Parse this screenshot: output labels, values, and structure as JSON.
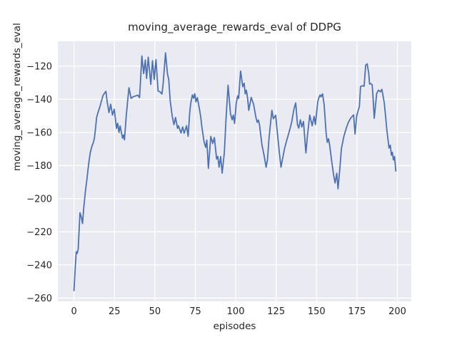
{
  "chart_data": {
    "type": "line",
    "title": "moving_average_rewards_eval of DDPG",
    "xlabel": "episodes",
    "ylabel": "moving_average_rewards_eval",
    "xlim": [
      -10,
      208.6
    ],
    "ylim": [
      -262,
      -105
    ],
    "grid": true,
    "plot_bg": "#eaeaf2",
    "grid_color": "#ffffff",
    "line_color": "#4c72b0",
    "x_tick_values": [
      0,
      25,
      50,
      75,
      100,
      125,
      150,
      175,
      200
    ],
    "x_tick_labels": [
      "0",
      "25",
      "50",
      "75",
      "100",
      "125",
      "150",
      "175",
      "200"
    ],
    "y_tick_values": [
      -120,
      -140,
      -160,
      -180,
      -200,
      -220,
      -240,
      -260
    ],
    "y_tick_labels": [
      "−120",
      "−140",
      "−160",
      "−180",
      "−200",
      "−220",
      "−240",
      "−260"
    ],
    "series": [
      [
        0,
        -255.5
      ],
      [
        0.7,
        -243
      ],
      [
        1.4,
        -232
      ],
      [
        2,
        -233
      ],
      [
        2.6,
        -230.5
      ],
      [
        3.7,
        -208.5
      ],
      [
        4.5,
        -211
      ],
      [
        5.3,
        -215
      ],
      [
        6,
        -206
      ],
      [
        7,
        -196
      ],
      [
        8,
        -188
      ],
      [
        9,
        -179.5
      ],
      [
        10,
        -172.5
      ],
      [
        11,
        -168.5
      ],
      [
        12,
        -166
      ],
      [
        12.6,
        -163.5
      ],
      [
        13.3,
        -157.5
      ],
      [
        14,
        -151
      ],
      [
        15,
        -147.5
      ],
      [
        16,
        -144.5
      ],
      [
        17,
        -141
      ],
      [
        18,
        -137.5
      ],
      [
        19.7,
        -135.2
      ],
      [
        20.5,
        -141.5
      ],
      [
        21.6,
        -148
      ],
      [
        22.7,
        -143
      ],
      [
        23.8,
        -149.5
      ],
      [
        24.9,
        -146
      ],
      [
        26.3,
        -157.5
      ],
      [
        27,
        -154.5
      ],
      [
        27.8,
        -160
      ],
      [
        28.5,
        -156
      ],
      [
        30,
        -163.5
      ],
      [
        30.6,
        -161.5
      ],
      [
        31.2,
        -164.5
      ],
      [
        32.2,
        -151
      ],
      [
        33,
        -142.5
      ],
      [
        34,
        -133
      ],
      [
        35.3,
        -139.5
      ],
      [
        36.5,
        -138.5
      ],
      [
        38,
        -138
      ],
      [
        39.5,
        -137.5
      ],
      [
        40.5,
        -139
      ],
      [
        41,
        -131
      ],
      [
        42,
        -113.8
      ],
      [
        43.1,
        -124.5
      ],
      [
        44.1,
        -116.3
      ],
      [
        44.9,
        -127.4
      ],
      [
        45.9,
        -114.6
      ],
      [
        47.5,
        -131
      ],
      [
        48.5,
        -116.7
      ],
      [
        49.6,
        -128
      ],
      [
        50.7,
        -116
      ],
      [
        52,
        -135
      ],
      [
        53.2,
        -135.5
      ],
      [
        54.4,
        -136.8
      ],
      [
        55.2,
        -130
      ],
      [
        56.6,
        -112
      ],
      [
        57.8,
        -124.5
      ],
      [
        58.6,
        -128
      ],
      [
        59.5,
        -141
      ],
      [
        60.7,
        -150
      ],
      [
        61.8,
        -155.3
      ],
      [
        62.8,
        -151
      ],
      [
        64,
        -157.5
      ],
      [
        64.6,
        -156
      ],
      [
        66.2,
        -160.3
      ],
      [
        67.2,
        -156.7
      ],
      [
        68.1,
        -160.5
      ],
      [
        69.6,
        -156
      ],
      [
        70.6,
        -162.4
      ],
      [
        71.5,
        -149
      ],
      [
        72.1,
        -143
      ],
      [
        73.2,
        -137.3
      ],
      [
        74,
        -139.4
      ],
      [
        74.7,
        -136.6
      ],
      [
        75.4,
        -141.6
      ],
      [
        76.3,
        -139
      ],
      [
        77.7,
        -146.6
      ],
      [
        78.4,
        -151
      ],
      [
        79.1,
        -157
      ],
      [
        80.5,
        -166
      ],
      [
        81.4,
        -169
      ],
      [
        82.1,
        -164.6
      ],
      [
        83.1,
        -181.7
      ],
      [
        84.6,
        -162.4
      ],
      [
        85.8,
        -166.7
      ],
      [
        86.8,
        -163.1
      ],
      [
        88.2,
        -176
      ],
      [
        88.9,
        -174.5
      ],
      [
        89.7,
        -181
      ],
      [
        90.7,
        -174.6
      ],
      [
        91.6,
        -184.6
      ],
      [
        93,
        -172
      ],
      [
        94,
        -152
      ],
      [
        95.3,
        -131.5
      ],
      [
        96.8,
        -148.8
      ],
      [
        97.8,
        -152.4
      ],
      [
        98.5,
        -149.5
      ],
      [
        99.3,
        -154.6
      ],
      [
        100.3,
        -142.4
      ],
      [
        101.2,
        -138
      ],
      [
        101.8,
        -139.5
      ],
      [
        103,
        -123
      ],
      [
        104.4,
        -132.4
      ],
      [
        105.2,
        -130.3
      ],
      [
        105.9,
        -136.7
      ],
      [
        106.6,
        -134.5
      ],
      [
        107.4,
        -139.5
      ],
      [
        108.1,
        -146.7
      ],
      [
        109.6,
        -138.8
      ],
      [
        111.1,
        -143.1
      ],
      [
        112.5,
        -151
      ],
      [
        113.3,
        -153.9
      ],
      [
        114,
        -152.5
      ],
      [
        114.7,
        -155.3
      ],
      [
        115.4,
        -161
      ],
      [
        116.2,
        -167.4
      ],
      [
        117.4,
        -173.1
      ],
      [
        118.8,
        -181
      ],
      [
        119.6,
        -176.7
      ],
      [
        120.6,
        -163.9
      ],
      [
        121.3,
        -156.7
      ],
      [
        122.4,
        -146.7
      ],
      [
        123.3,
        -151.7
      ],
      [
        124.7,
        -149.6
      ],
      [
        125.7,
        -159.6
      ],
      [
        127,
        -172
      ],
      [
        128,
        -181
      ],
      [
        130.1,
        -170.3
      ],
      [
        131.6,
        -164.6
      ],
      [
        133.1,
        -159.6
      ],
      [
        134.6,
        -153.9
      ],
      [
        136,
        -146
      ],
      [
        137.1,
        -142.2
      ],
      [
        138.2,
        -155.3
      ],
      [
        139,
        -157.4
      ],
      [
        140,
        -152.4
      ],
      [
        140.9,
        -156.7
      ],
      [
        141.9,
        -153.4
      ],
      [
        143.4,
        -172.4
      ],
      [
        144.4,
        -161.7
      ],
      [
        145.8,
        -149.5
      ],
      [
        147.3,
        -156
      ],
      [
        148.5,
        -150.3
      ],
      [
        149.3,
        -155.3
      ],
      [
        150.7,
        -141.7
      ],
      [
        151.5,
        -138.8
      ],
      [
        152.2,
        -137.4
      ],
      [
        152.8,
        -138.5
      ],
      [
        153.7,
        -136.7
      ],
      [
        154.7,
        -143.1
      ],
      [
        155.9,
        -160.3
      ],
      [
        156.6,
        -166
      ],
      [
        157.4,
        -163.9
      ],
      [
        158.1,
        -167.4
      ],
      [
        159.6,
        -179
      ],
      [
        160.6,
        -186
      ],
      [
        161.5,
        -190.5
      ],
      [
        162.5,
        -184.6
      ],
      [
        163.3,
        -194
      ],
      [
        164.4,
        -182
      ],
      [
        165.4,
        -169.5
      ],
      [
        166.9,
        -162.3
      ],
      [
        168.4,
        -157.3
      ],
      [
        169.8,
        -153.7
      ],
      [
        171.3,
        -151.1
      ],
      [
        172.9,
        -149.4
      ],
      [
        173.8,
        -161
      ],
      [
        174.8,
        -150
      ],
      [
        175.8,
        -146.6
      ],
      [
        176.5,
        -144.4
      ],
      [
        177.2,
        -132.3
      ],
      [
        178.5,
        -131.8
      ],
      [
        179.4,
        -132.1
      ],
      [
        180.4,
        -119.4
      ],
      [
        181.3,
        -118.6
      ],
      [
        182.3,
        -124.4
      ],
      [
        182.8,
        -130.8
      ],
      [
        183.5,
        -130.5
      ],
      [
        184.4,
        -131.2
      ],
      [
        184.8,
        -136.5
      ],
      [
        185.7,
        -151.5
      ],
      [
        187.2,
        -136.5
      ],
      [
        188.3,
        -134.5
      ],
      [
        189.5,
        -135.5
      ],
      [
        190.4,
        -134
      ],
      [
        191.9,
        -142.3
      ],
      [
        192.6,
        -149.4
      ],
      [
        193.4,
        -158
      ],
      [
        194.8,
        -169.4
      ],
      [
        195.6,
        -167.7
      ],
      [
        196.3,
        -173.7
      ],
      [
        196.9,
        -172
      ],
      [
        197.5,
        -176.6
      ],
      [
        198.2,
        -174.5
      ],
      [
        199,
        -183.3
      ]
    ]
  }
}
